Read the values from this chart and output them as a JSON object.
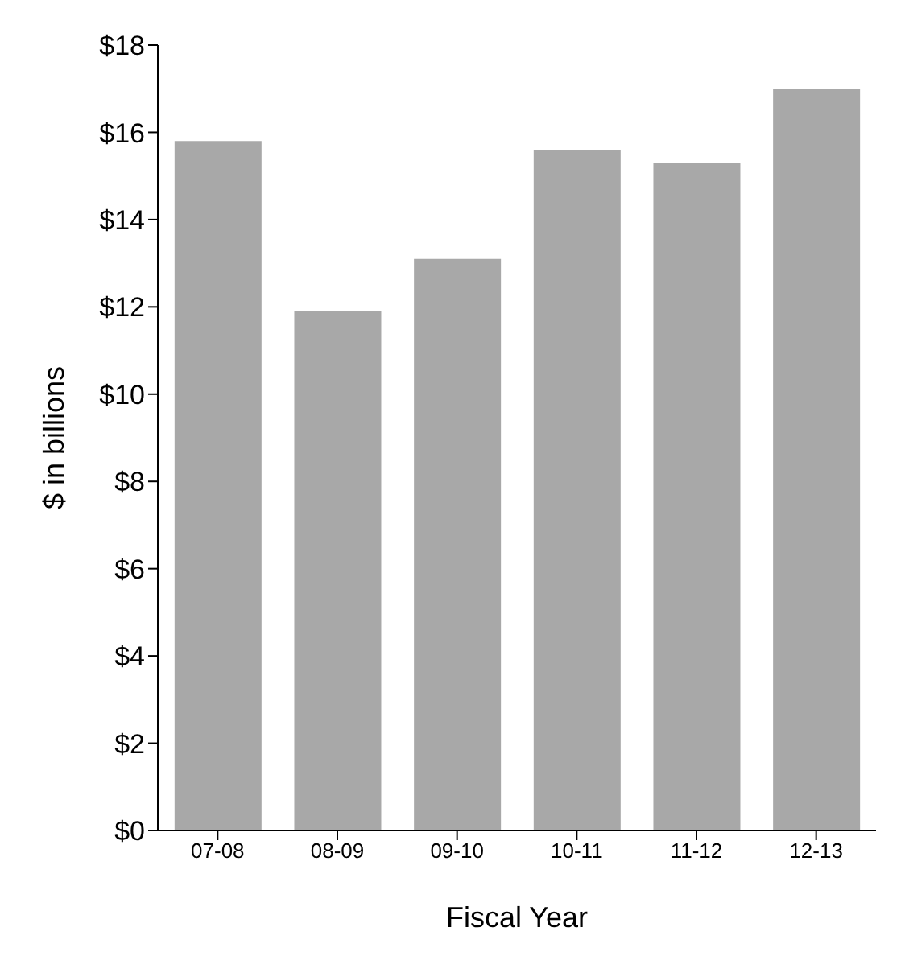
{
  "chart_data": {
    "type": "bar",
    "xlabel": "Fiscal Year",
    "ylabel": "$ in billions",
    "categories": [
      "07-08",
      "08-09",
      "09-10",
      "10-11",
      "11-12",
      "12-13"
    ],
    "values": [
      15.8,
      11.9,
      13.1,
      15.6,
      15.3,
      17.0
    ],
    "color": "#a8a8a8",
    "ylim": [
      0,
      18
    ],
    "yticks": [
      {
        "value": 0,
        "label": "$0"
      },
      {
        "value": 2,
        "label": "$2"
      },
      {
        "value": 4,
        "label": "$4"
      },
      {
        "value": 6,
        "label": "$6"
      },
      {
        "value": 8,
        "label": "$8"
      },
      {
        "value": 10,
        "label": "$10"
      },
      {
        "value": 12,
        "label": "$12"
      },
      {
        "value": 14,
        "label": "$14"
      },
      {
        "value": 16,
        "label": "$16"
      },
      {
        "value": 18,
        "label": "$18"
      }
    ]
  }
}
